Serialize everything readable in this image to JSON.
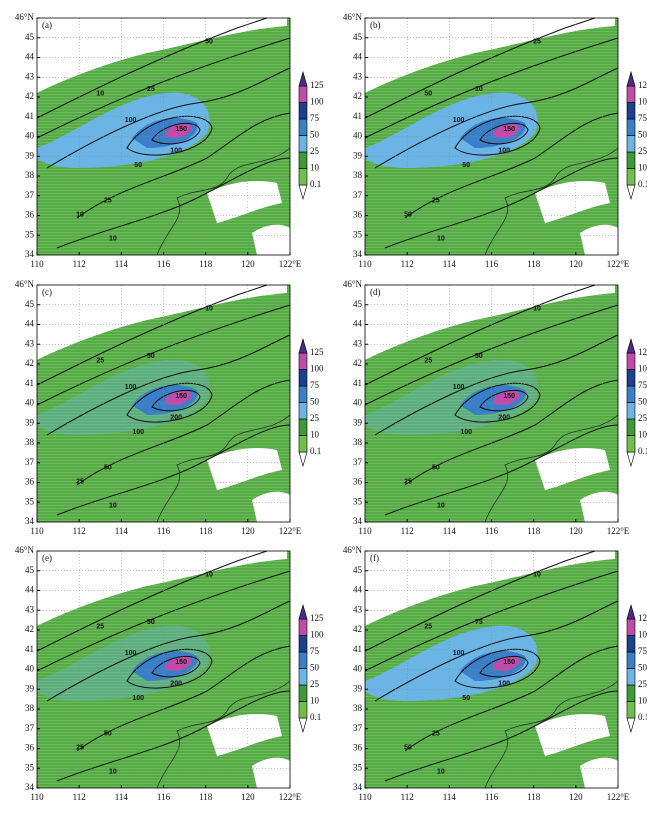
{
  "lat_labels": [
    "34",
    "35",
    "36",
    "37",
    "38",
    "39",
    "40",
    "41",
    "42",
    "43",
    "44",
    "45",
    "46°N"
  ],
  "lon_labels": [
    "110",
    "112",
    "114",
    "116",
    "118",
    "120",
    "122°E"
  ],
  "colorbar_labels": [
    "0.1",
    "10",
    "25",
    "50",
    "75",
    "100",
    "125"
  ],
  "panels": [
    {
      "label": "(a)",
      "contour_labels": [
        "50",
        "10",
        "25",
        "100",
        "150",
        "100",
        "50",
        "25",
        "10",
        "10"
      ]
    },
    {
      "label": "(b)",
      "contour_labels": [
        "25",
        "50",
        "10",
        "100",
        "150",
        "100",
        "50",
        "25",
        "50",
        "10"
      ]
    },
    {
      "label": "(c)",
      "contour_labels": [
        "10",
        "25",
        "50",
        "100",
        "150",
        "200",
        "100",
        "50",
        "25",
        "10"
      ]
    },
    {
      "label": "(d)",
      "contour_labels": [
        "10",
        "25",
        "50",
        "100",
        "150",
        "200",
        "100",
        "50",
        "25",
        "10"
      ]
    },
    {
      "label": "(e)",
      "contour_labels": [
        "10",
        "25",
        "50",
        "100",
        "150",
        "200",
        "100",
        "50",
        "25",
        "10"
      ]
    },
    {
      "label": "(f)",
      "contour_labels": [
        "10",
        "25",
        "75",
        "100",
        "150",
        "100",
        "50",
        "25",
        "50",
        "10"
      ]
    }
  ]
}
